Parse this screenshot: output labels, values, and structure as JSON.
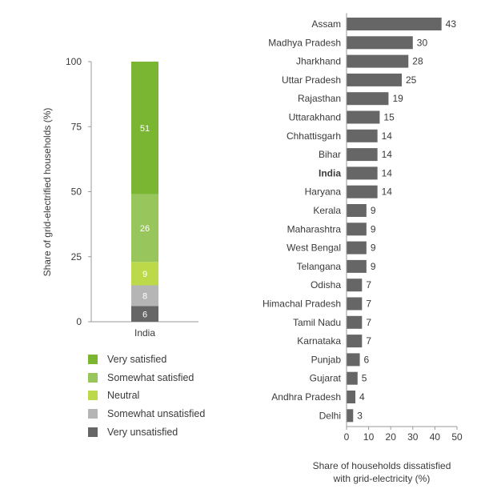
{
  "chart_data": [
    {
      "type": "bar",
      "stacked": true,
      "ylabel": "Share of grid-electrified households (%)",
      "ylim": [
        0,
        100
      ],
      "yticks": [
        0,
        25,
        50,
        75,
        100
      ],
      "categories": [
        "India"
      ],
      "series": [
        {
          "name": "Very unsatisfied",
          "values": [
            6
          ],
          "color": "#666666"
        },
        {
          "name": "Somewhat unsatisfied",
          "values": [
            8
          ],
          "color": "#b5b5b5"
        },
        {
          "name": "Neutral",
          "values": [
            9
          ],
          "color": "#bcd94a"
        },
        {
          "name": "Somewhat satisfied",
          "values": [
            26
          ],
          "color": "#98c55c"
        },
        {
          "name": "Very satisfied",
          "values": [
            51
          ],
          "color": "#7ab632"
        }
      ],
      "legend_order": [
        "Very satisfied",
        "Somewhat satisfied",
        "Neutral",
        "Somewhat unsatisfied",
        "Very unsatisfied"
      ],
      "legend_position": "bottom"
    },
    {
      "type": "bar",
      "orientation": "horizontal",
      "xlabel_lines": [
        "Share of households dissatisfied",
        "with grid-electricity (%)"
      ],
      "xlim": [
        0,
        50
      ],
      "xticks": [
        0,
        10,
        20,
        30,
        40,
        50
      ],
      "bar_color": "#666666",
      "highlight": "India",
      "categories": [
        "Assam",
        "Madhya Pradesh",
        "Jharkhand",
        "Uttar Pradesh",
        "Rajasthan",
        "Uttarakhand",
        "Chhattisgarh",
        "Bihar",
        "India",
        "Haryana",
        "Kerala",
        "Maharashtra",
        "West Bengal",
        "Telangana",
        "Odisha",
        "Himachal Pradesh",
        "Tamil Nadu",
        "Karnataka",
        "Punjab",
        "Gujarat",
        "Andhra Pradesh",
        "Delhi"
      ],
      "values": [
        43,
        30,
        28,
        25,
        19,
        15,
        14,
        14,
        14,
        14,
        9,
        9,
        9,
        9,
        7,
        7,
        7,
        7,
        6,
        5,
        4,
        3
      ]
    }
  ]
}
